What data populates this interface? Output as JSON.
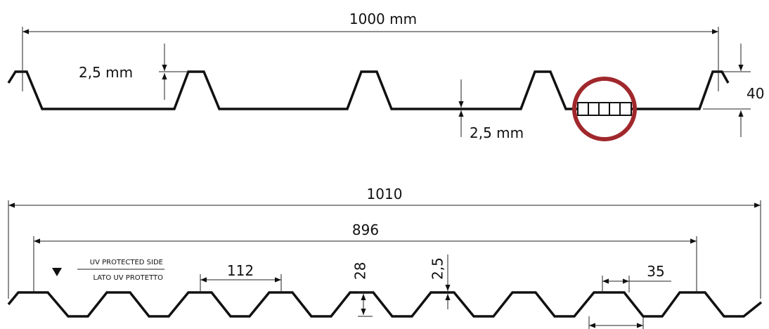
{
  "top_profile": {
    "width_label": "1000 mm",
    "upper_thickness_label": "2,5 mm",
    "lower_thickness_label": "2,5 mm",
    "height_label": "40",
    "detail_color": "#a0282c"
  },
  "bottom_profile": {
    "overall_width_label": "1010",
    "cover_width_label": "896",
    "pitch_label": "112",
    "height_label": "28",
    "thickness_label": "2,5",
    "crest_width_label": "35",
    "uv_side_label": "UV PROTECTED SIDE",
    "uv_side_label_it": "LATO UV PROTETTO"
  }
}
